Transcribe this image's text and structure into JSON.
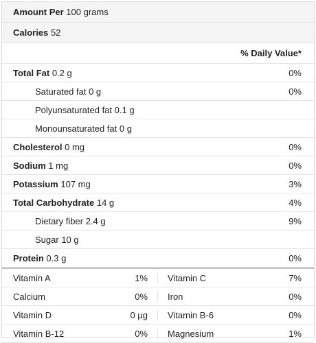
{
  "header": {
    "amount_label": "Amount Per",
    "amount_value": "100 grams",
    "calories_label": "Calories",
    "calories_value": "52"
  },
  "daily_value_heading": "% Daily Value*",
  "nutrients": [
    {
      "label": "Total Fat",
      "value": "0.2 g",
      "pct": "0%",
      "bold": true
    },
    {
      "label": "Saturated fat",
      "value": "0 g",
      "pct": "0%",
      "indent": true
    },
    {
      "label": "Polyunsaturated fat",
      "value": "0.1 g",
      "pct": "",
      "indent": true
    },
    {
      "label": "Monounsaturated fat",
      "value": "0 g",
      "pct": "",
      "indent": true
    },
    {
      "label": "Cholesterol",
      "value": "0 mg",
      "pct": "0%",
      "bold": true
    },
    {
      "label": "Sodium",
      "value": "1 mg",
      "pct": "0%",
      "bold": true
    },
    {
      "label": "Potassium",
      "value": "107 mg",
      "pct": "3%",
      "bold": true
    },
    {
      "label": "Total Carbohydrate",
      "value": "14 g",
      "pct": "4%",
      "bold": true
    },
    {
      "label": "Dietary fiber",
      "value": "2.4 g",
      "pct": "9%",
      "indent": true
    },
    {
      "label": "Sugar",
      "value": "10 g",
      "pct": "",
      "indent": true
    },
    {
      "label": "Protein",
      "value": "0.3 g",
      "pct": "0%",
      "bold": true
    }
  ],
  "vitamins": [
    [
      {
        "name": "Vitamin A",
        "pct": "1%"
      },
      {
        "name": "Vitamin C",
        "pct": "7%"
      }
    ],
    [
      {
        "name": "Calcium",
        "pct": "0%"
      },
      {
        "name": "Iron",
        "pct": "0%"
      }
    ],
    [
      {
        "name": "Vitamin D",
        "pct": "0 µg"
      },
      {
        "name": "Vitamin B-6",
        "pct": "0%"
      }
    ],
    [
      {
        "name": "Vitamin B-12",
        "pct": "0%"
      },
      {
        "name": "Magnesium",
        "pct": "1%"
      }
    ]
  ]
}
